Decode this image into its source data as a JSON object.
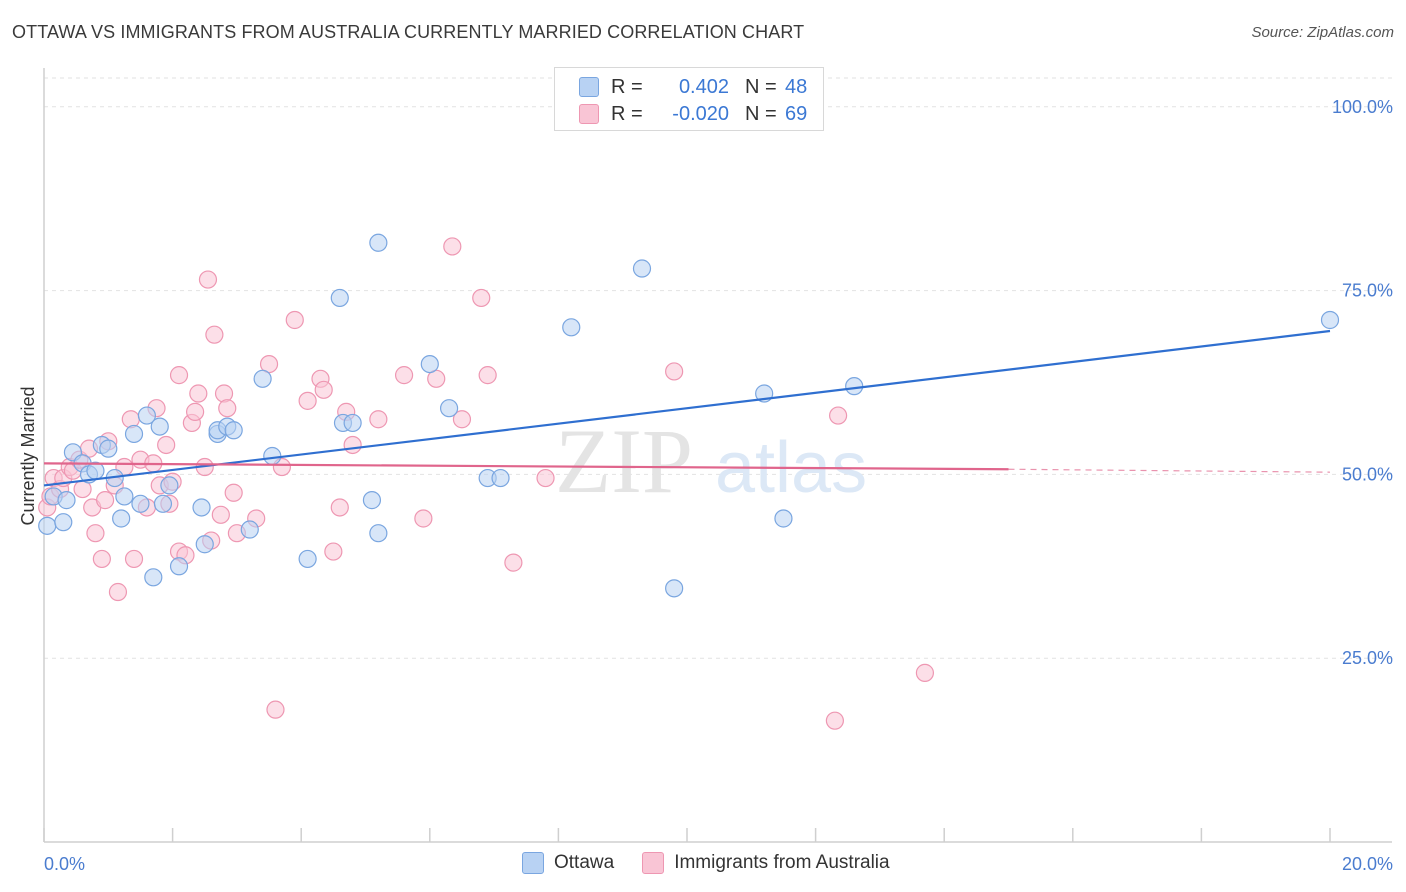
{
  "title": "OTTAWA VS IMMIGRANTS FROM AUSTRALIA CURRENTLY MARRIED CORRELATION CHART",
  "source": "Source: ZipAtlas.com",
  "legend": {
    "rows": [
      {
        "r_label": "R =",
        "r_value": "0.402",
        "n_label": "N =",
        "n_value": "48"
      },
      {
        "r_label": "R =",
        "r_value": "-0.020",
        "n_label": "N =",
        "n_value": "69"
      }
    ]
  },
  "bottom_legend": [
    "Ottawa",
    "Immigrants from Australia"
  ],
  "colors": {
    "ottawa_fill": "#b8d2f3",
    "ottawa_stroke": "#7aa6e0",
    "ottawa_line": "#2f6fd0",
    "aus_fill": "#f9c5d5",
    "aus_stroke": "#ee97b2",
    "aus_line": "#e0658c",
    "grid": "#e2e2e2",
    "tick_text": "#4a7ccf"
  },
  "chart_data": {
    "type": "scatter",
    "title": "OTTAWA VS IMMIGRANTS FROM AUSTRALIA CURRENTLY MARRIED CORRELATION CHART",
    "xlabel": "",
    "ylabel": "Currently Married",
    "xlim": [
      0,
      20
    ],
    "ylim": [
      0,
      105
    ],
    "x_tick_labels": [
      "0.0%",
      "20.0%"
    ],
    "y_ticks": [
      25,
      50,
      75,
      100
    ],
    "y_tick_labels": [
      "25.0%",
      "50.0%",
      "75.0%",
      "100.0%"
    ],
    "grid": true,
    "watermark": "ZIPatlas",
    "series": [
      {
        "name": "Ottawa",
        "r": 0.402,
        "n": 48,
        "trend": {
          "x": [
            0,
            20
          ],
          "y": [
            48.5,
            69.5
          ]
        },
        "points": [
          [
            0.05,
            43
          ],
          [
            0.3,
            43.5
          ],
          [
            0.15,
            47
          ],
          [
            0.35,
            46.5
          ],
          [
            0.45,
            53
          ],
          [
            0.6,
            51.5
          ],
          [
            0.7,
            50
          ],
          [
            0.8,
            50.5
          ],
          [
            0.9,
            54
          ],
          [
            1.0,
            53.5
          ],
          [
            1.1,
            49.5
          ],
          [
            1.2,
            44
          ],
          [
            1.25,
            47
          ],
          [
            1.4,
            55.5
          ],
          [
            1.5,
            46
          ],
          [
            1.6,
            58
          ],
          [
            1.7,
            36
          ],
          [
            1.8,
            56.5
          ],
          [
            1.85,
            46
          ],
          [
            1.95,
            48.5
          ],
          [
            2.1,
            37.5
          ],
          [
            2.45,
            45.5
          ],
          [
            2.5,
            40.5
          ],
          [
            2.7,
            55.5
          ],
          [
            2.7,
            56
          ],
          [
            2.85,
            56.5
          ],
          [
            2.95,
            56
          ],
          [
            3.2,
            42.5
          ],
          [
            3.4,
            63
          ],
          [
            3.55,
            52.5
          ],
          [
            4.1,
            38.5
          ],
          [
            4.6,
            74
          ],
          [
            4.65,
            57
          ],
          [
            4.8,
            57
          ],
          [
            5.1,
            46.5
          ],
          [
            5.2,
            81.5
          ],
          [
            5.2,
            42
          ],
          [
            6.0,
            65
          ],
          [
            6.3,
            59
          ],
          [
            6.9,
            49.5
          ],
          [
            7.1,
            49.5
          ],
          [
            8.2,
            70
          ],
          [
            9.3,
            78
          ],
          [
            9.8,
            34.5
          ],
          [
            11.2,
            61
          ],
          [
            11.5,
            44
          ],
          [
            12.6,
            62
          ],
          [
            20.0,
            71
          ]
        ]
      },
      {
        "name": "Immigrants from Australia",
        "r": -0.02,
        "n": 69,
        "trend": {
          "x": [
            0,
            15
          ],
          "y": [
            51.5,
            50.7
          ]
        },
        "trend_dashed": {
          "x": [
            15,
            20
          ],
          "y": [
            50.7,
            50.3
          ]
        },
        "points": [
          [
            0.05,
            45.5
          ],
          [
            0.1,
            47
          ],
          [
            0.15,
            49.5
          ],
          [
            0.25,
            48
          ],
          [
            0.3,
            49.5
          ],
          [
            0.4,
            51
          ],
          [
            0.45,
            50.5
          ],
          [
            0.55,
            52
          ],
          [
            0.6,
            48
          ],
          [
            0.7,
            53.5
          ],
          [
            0.75,
            45.5
          ],
          [
            0.8,
            42
          ],
          [
            0.9,
            38.5
          ],
          [
            0.95,
            46.5
          ],
          [
            1.0,
            54.5
          ],
          [
            1.1,
            48.5
          ],
          [
            1.15,
            34
          ],
          [
            1.25,
            51
          ],
          [
            1.35,
            57.5
          ],
          [
            1.4,
            38.5
          ],
          [
            1.5,
            52
          ],
          [
            1.6,
            45.5
          ],
          [
            1.7,
            51.5
          ],
          [
            1.75,
            59
          ],
          [
            1.8,
            48.5
          ],
          [
            1.9,
            54
          ],
          [
            1.95,
            46
          ],
          [
            2.0,
            49
          ],
          [
            2.1,
            39.5
          ],
          [
            2.1,
            63.5
          ],
          [
            2.2,
            39
          ],
          [
            2.3,
            57
          ],
          [
            2.35,
            58.5
          ],
          [
            2.4,
            61
          ],
          [
            2.5,
            51
          ],
          [
            2.55,
            76.5
          ],
          [
            2.6,
            41
          ],
          [
            2.65,
            69
          ],
          [
            2.75,
            44.5
          ],
          [
            2.8,
            61
          ],
          [
            2.85,
            59
          ],
          [
            2.95,
            47.5
          ],
          [
            3.0,
            42
          ],
          [
            3.3,
            44
          ],
          [
            3.5,
            65
          ],
          [
            3.7,
            51
          ],
          [
            3.9,
            71
          ],
          [
            4.1,
            60
          ],
          [
            4.3,
            63
          ],
          [
            4.35,
            61.5
          ],
          [
            4.5,
            39.5
          ],
          [
            4.6,
            45.5
          ],
          [
            4.7,
            58.5
          ],
          [
            4.8,
            54
          ],
          [
            5.2,
            57.5
          ],
          [
            5.6,
            63.5
          ],
          [
            5.9,
            44
          ],
          [
            6.1,
            63
          ],
          [
            6.35,
            81
          ],
          [
            6.5,
            57.5
          ],
          [
            6.8,
            74
          ],
          [
            6.9,
            63.5
          ],
          [
            7.3,
            38
          ],
          [
            7.8,
            49.5
          ],
          [
            9.8,
            64
          ],
          [
            12.3,
            16.5
          ],
          [
            12.35,
            58
          ],
          [
            13.7,
            23
          ],
          [
            3.6,
            18
          ]
        ]
      }
    ]
  }
}
